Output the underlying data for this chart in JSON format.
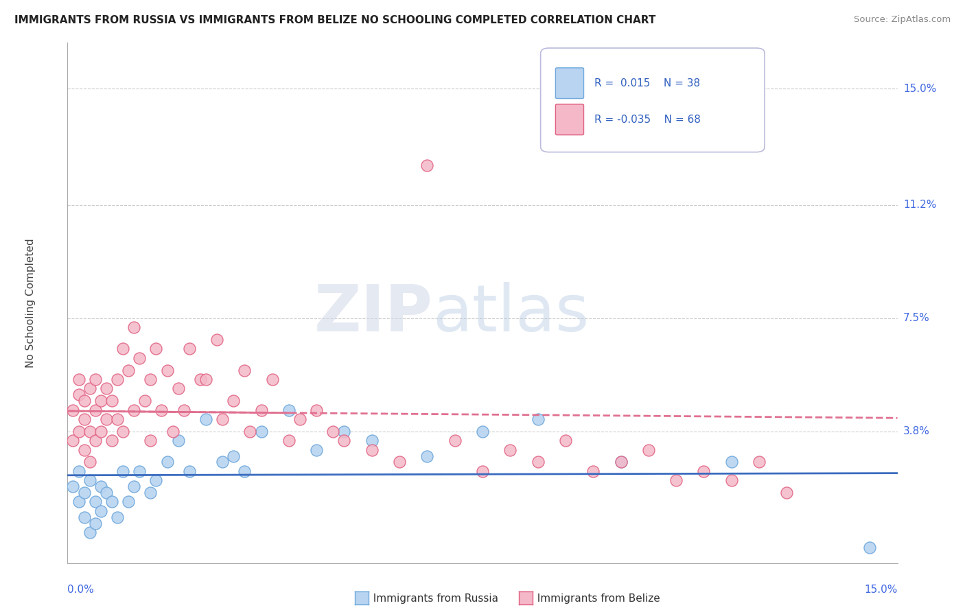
{
  "title": "IMMIGRANTS FROM RUSSIA VS IMMIGRANTS FROM BELIZE NO SCHOOLING COMPLETED CORRELATION CHART",
  "source": "Source: ZipAtlas.com",
  "ylabel": "No Schooling Completed",
  "ytick_labels": [
    "3.8%",
    "7.5%",
    "11.2%",
    "15.0%"
  ],
  "ytick_values": [
    0.038,
    0.075,
    0.112,
    0.15
  ],
  "xlim": [
    0.0,
    0.15
  ],
  "ylim": [
    -0.005,
    0.165
  ],
  "color_russia_fill": "#b8d4f0",
  "color_russia_edge": "#6fa8dc",
  "color_belize_fill": "#f4b8c8",
  "color_belize_edge": "#e06080",
  "color_line_russia": "#3a6bbf",
  "color_line_belize": "#e07090",
  "background_color": "#FFFFFF",
  "watermark_zip": "ZIP",
  "watermark_atlas": "atlas",
  "russia_x": [
    0.001,
    0.002,
    0.002,
    0.003,
    0.003,
    0.004,
    0.004,
    0.005,
    0.005,
    0.006,
    0.006,
    0.007,
    0.008,
    0.009,
    0.01,
    0.011,
    0.012,
    0.013,
    0.015,
    0.016,
    0.018,
    0.02,
    0.022,
    0.025,
    0.028,
    0.03,
    0.032,
    0.035,
    0.04,
    0.045,
    0.05,
    0.055,
    0.065,
    0.075,
    0.085,
    0.1,
    0.12,
    0.145
  ],
  "russia_y": [
    0.02,
    0.015,
    0.025,
    0.018,
    0.01,
    0.022,
    0.005,
    0.015,
    0.008,
    0.02,
    0.012,
    0.018,
    0.015,
    0.01,
    0.025,
    0.015,
    0.02,
    0.025,
    0.018,
    0.022,
    0.028,
    0.035,
    0.025,
    0.042,
    0.028,
    0.03,
    0.025,
    0.038,
    0.045,
    0.032,
    0.038,
    0.035,
    0.03,
    0.038,
    0.042,
    0.028,
    0.028,
    0.0
  ],
  "belize_x": [
    0.001,
    0.001,
    0.002,
    0.002,
    0.002,
    0.003,
    0.003,
    0.003,
    0.004,
    0.004,
    0.004,
    0.005,
    0.005,
    0.005,
    0.006,
    0.006,
    0.007,
    0.007,
    0.008,
    0.008,
    0.009,
    0.009,
    0.01,
    0.01,
    0.011,
    0.012,
    0.012,
    0.013,
    0.014,
    0.015,
    0.015,
    0.016,
    0.017,
    0.018,
    0.019,
    0.02,
    0.021,
    0.022,
    0.024,
    0.025,
    0.027,
    0.028,
    0.03,
    0.032,
    0.033,
    0.035,
    0.037,
    0.04,
    0.042,
    0.045,
    0.048,
    0.05,
    0.055,
    0.06,
    0.065,
    0.07,
    0.075,
    0.08,
    0.085,
    0.09,
    0.095,
    0.1,
    0.105,
    0.11,
    0.115,
    0.12,
    0.125,
    0.13
  ],
  "belize_y": [
    0.035,
    0.045,
    0.038,
    0.05,
    0.055,
    0.042,
    0.048,
    0.032,
    0.038,
    0.052,
    0.028,
    0.045,
    0.035,
    0.055,
    0.048,
    0.038,
    0.052,
    0.042,
    0.048,
    0.035,
    0.055,
    0.042,
    0.065,
    0.038,
    0.058,
    0.072,
    0.045,
    0.062,
    0.048,
    0.055,
    0.035,
    0.065,
    0.045,
    0.058,
    0.038,
    0.052,
    0.045,
    0.065,
    0.055,
    0.055,
    0.068,
    0.042,
    0.048,
    0.058,
    0.038,
    0.045,
    0.055,
    0.035,
    0.042,
    0.045,
    0.038,
    0.035,
    0.032,
    0.028,
    0.125,
    0.035,
    0.025,
    0.032,
    0.028,
    0.035,
    0.025,
    0.028,
    0.032,
    0.022,
    0.025,
    0.022,
    0.028,
    0.018
  ]
}
